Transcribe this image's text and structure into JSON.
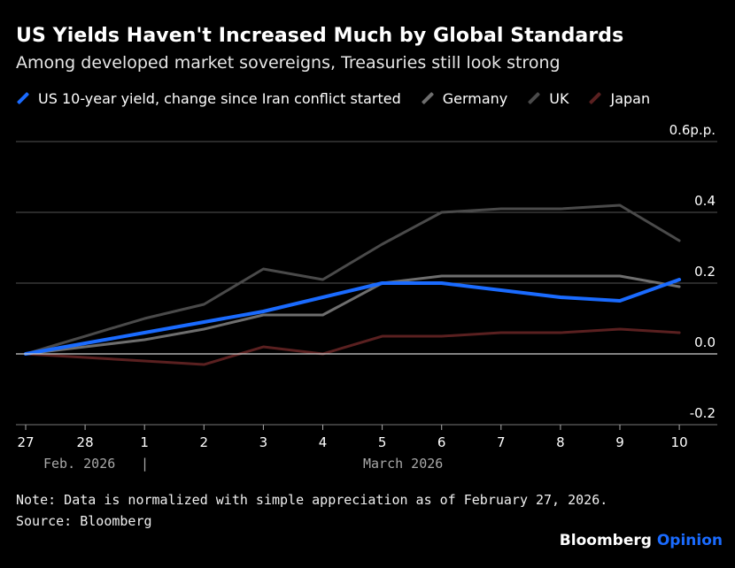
{
  "header": {
    "title": "US Yields Haven't Increased Much by Global Standards",
    "subtitle": "Among developed market sovereigns, Treasuries still look strong"
  },
  "colors": {
    "background": "#000000",
    "us": "#1a6bff",
    "germany": "#6e6e6e",
    "uk": "#4a4a4a",
    "japan": "#5a2020",
    "gridline": "#555555",
    "zeroline": "#cfcfcf"
  },
  "chart_data": {
    "type": "line",
    "title": "US Yields Haven't Increased Much by Global Standards",
    "subtitle": "Among developed market sovereigns, Treasuries still look strong",
    "x": [
      "27",
      "28",
      "1",
      "2",
      "3",
      "4",
      "5",
      "6",
      "7",
      "8",
      "9",
      "10"
    ],
    "x_groups": [
      {
        "label": "Feb. 2026",
        "separator": "|"
      },
      {
        "label": "March 2026"
      }
    ],
    "y_ticks": [
      "0.6p.p.",
      "0.4",
      "0.2",
      "0.0",
      "-0.2"
    ],
    "y_tick_values": [
      0.6,
      0.4,
      0.2,
      0.0,
      -0.2
    ],
    "ylim": [
      -0.2,
      0.6
    ],
    "grid": true,
    "legend_position": "top",
    "series": [
      {
        "name": "US 10-year yield, change since Iran conflict started",
        "key": "us",
        "values": [
          0.0,
          0.03,
          0.06,
          0.09,
          0.12,
          0.16,
          0.2,
          0.2,
          0.18,
          0.16,
          0.15,
          0.21
        ]
      },
      {
        "name": "Germany",
        "key": "germany",
        "values": [
          0.0,
          0.02,
          0.04,
          0.07,
          0.11,
          0.11,
          0.2,
          0.22,
          0.22,
          0.22,
          0.22,
          0.19
        ]
      },
      {
        "name": "UK",
        "key": "uk",
        "values": [
          0.0,
          0.05,
          0.1,
          0.14,
          0.24,
          0.21,
          0.31,
          0.4,
          0.41,
          0.41,
          0.42,
          0.32
        ]
      },
      {
        "name": "Japan",
        "key": "japan",
        "values": [
          0.0,
          -0.01,
          -0.02,
          -0.03,
          0.02,
          0.0,
          0.05,
          0.05,
          0.06,
          0.06,
          0.07,
          0.06
        ]
      }
    ]
  },
  "footer": {
    "note": "Note: Data is normalized with simple appreciation as of February 27, 2026.",
    "source": "Source: Bloomberg",
    "brand_main": "Bloomberg",
    "brand_accent": "Opinion"
  }
}
